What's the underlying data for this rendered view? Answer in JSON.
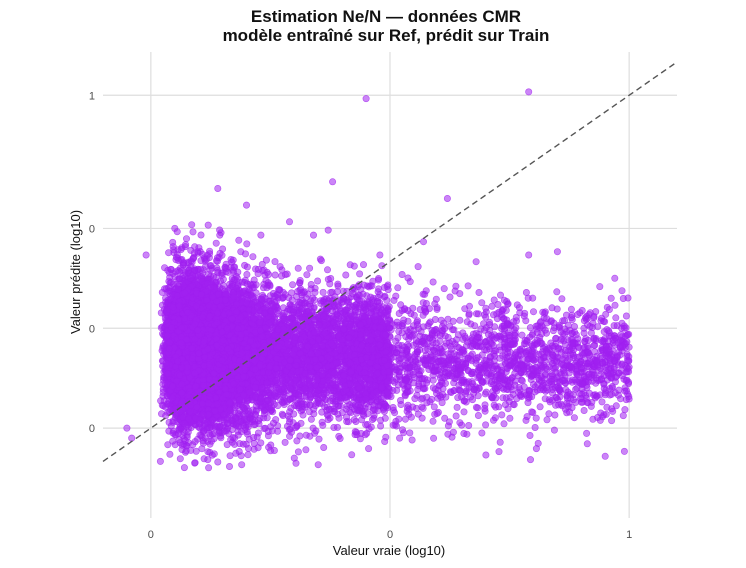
{
  "chart_data": {
    "type": "scatter",
    "title": "Estimation Ne/N — données CMR",
    "subtitle": "modèle entraîné sur Ref, prédit sur Train",
    "xlabel": "Valeur vraie (log10)",
    "ylabel": "Valeur prédite (log10)",
    "xlim": [
      -0.1,
      1.1
    ],
    "ylim": [
      -0.27,
      1.13
    ],
    "x_ticks": [
      {
        "value": 0,
        "label": "0"
      },
      {
        "value": 0.5,
        "label": "0"
      },
      {
        "value": 1,
        "label": "1"
      }
    ],
    "y_ticks": [
      {
        "value": 0,
        "label": "0"
      },
      {
        "value": 0.3,
        "label": "0"
      },
      {
        "value": 0.6,
        "label": "0"
      },
      {
        "value": 1,
        "label": "1"
      }
    ],
    "grid": true,
    "reference_line": {
      "slope": 1,
      "intercept": 0,
      "style": "dashed"
    },
    "point_color": "#a020f0",
    "point_opacity": 0.55,
    "point_count_displayed": 12000,
    "points": [
      {
        "x": 0.45,
        "y": 0.99
      },
      {
        "x": 0.79,
        "y": 1.01
      },
      {
        "x": 0.14,
        "y": 0.72
      },
      {
        "x": 0.2,
        "y": 0.67
      },
      {
        "x": 0.38,
        "y": 0.74
      },
      {
        "x": 0.62,
        "y": 0.69
      },
      {
        "x": 0.29,
        "y": 0.62
      },
      {
        "x": 0.12,
        "y": 0.61
      },
      {
        "x": -0.01,
        "y": 0.52
      },
      {
        "x": 0.57,
        "y": 0.56
      },
      {
        "x": 0.79,
        "y": 0.52
      },
      {
        "x": 0.85,
        "y": 0.53
      },
      {
        "x": 0.68,
        "y": 0.5
      },
      {
        "x": 0.97,
        "y": 0.45
      },
      {
        "x": 0.93,
        "y": 0.35
      },
      {
        "x": 0.99,
        "y": 0.3
      },
      {
        "x": 0.9,
        "y": 0.18
      },
      {
        "x": 0.84,
        "y": 0.22
      },
      {
        "x": 0.72,
        "y": 0.12
      },
      {
        "x": 0.79,
        "y": 0.1
      },
      {
        "x": 0.99,
        "y": -0.07
      },
      {
        "x": 0.95,
        "y": 0.1
      },
      {
        "x": 0.6,
        "y": 0.09
      },
      {
        "x": 0.52,
        "y": -0.03
      },
      {
        "x": 0.42,
        "y": -0.08
      },
      {
        "x": 0.35,
        "y": -0.11
      },
      {
        "x": 0.3,
        "y": -0.09
      },
      {
        "x": 0.19,
        "y": -0.11
      },
      {
        "x": 0.02,
        "y": -0.1
      },
      {
        "x": -0.04,
        "y": -0.03
      },
      {
        "x": -0.05,
        "y": 0.0
      },
      {
        "x": 0.23,
        "y": 0.58
      },
      {
        "x": 0.34,
        "y": 0.58
      },
      {
        "x": 0.05,
        "y": 0.6
      }
    ]
  }
}
